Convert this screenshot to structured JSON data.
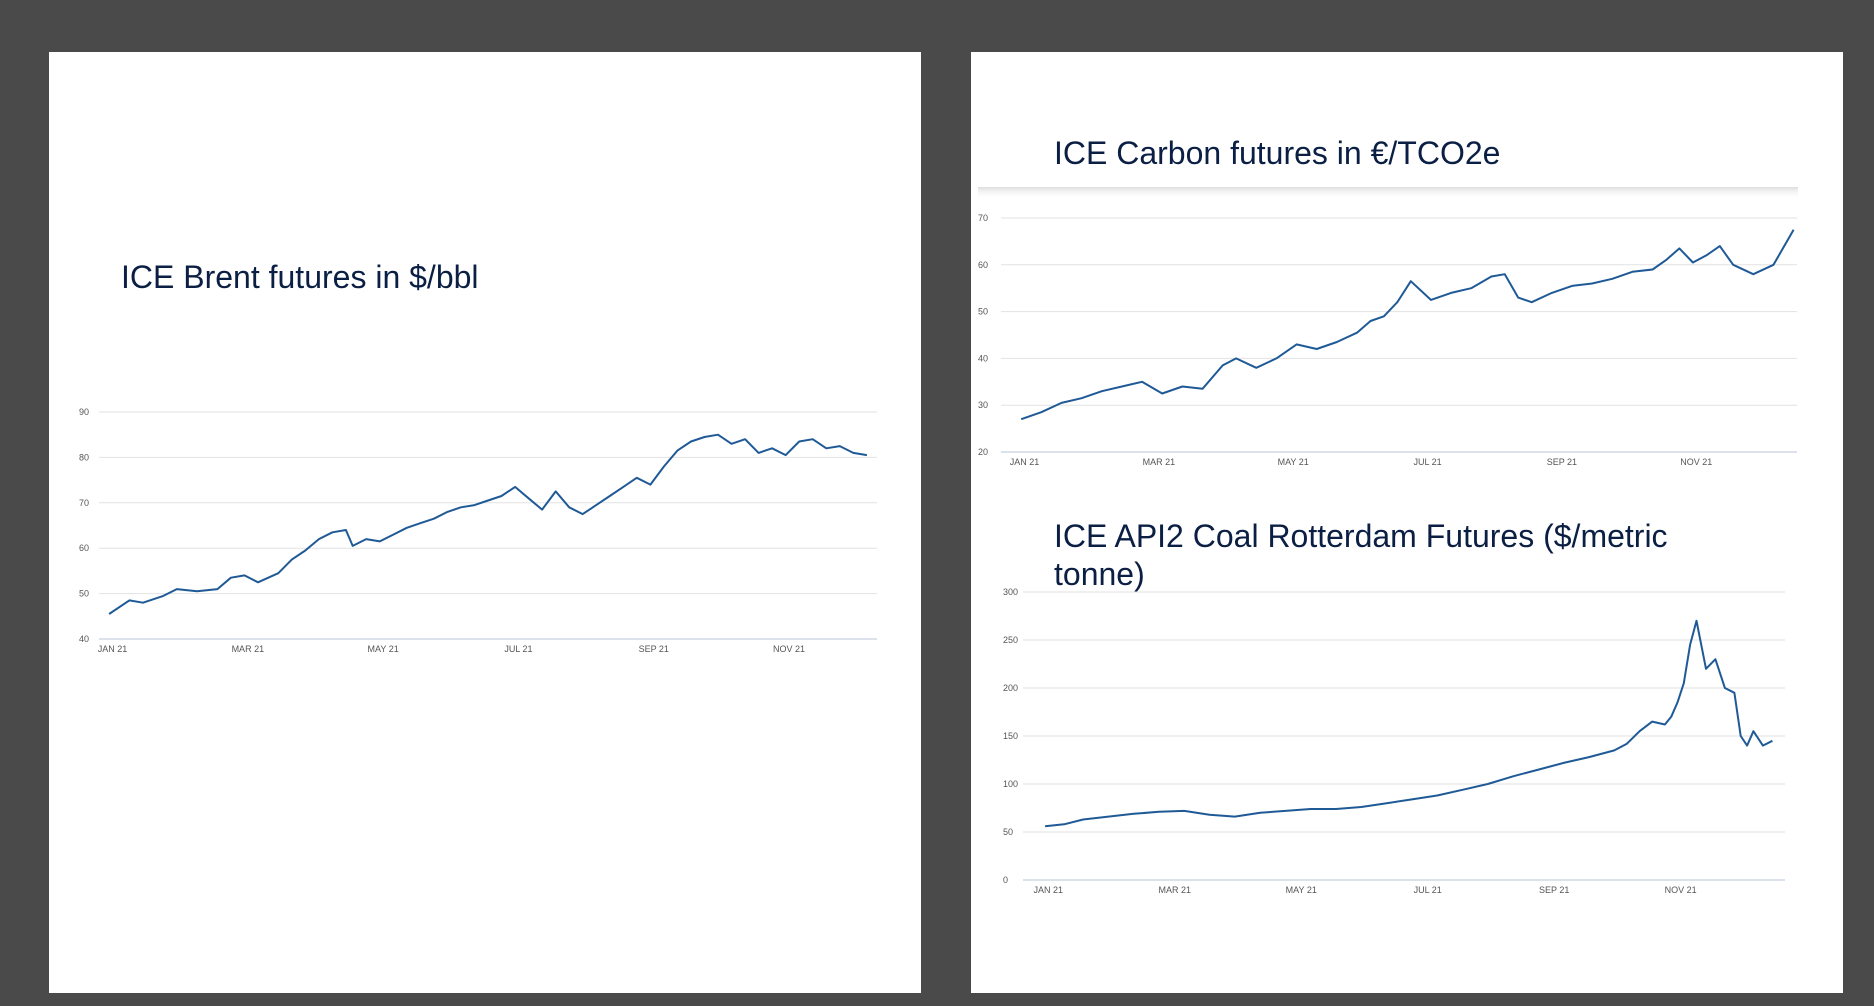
{
  "chart_data": [
    {
      "id": "brent",
      "type": "line",
      "title": "ICE Brent futures in $/bbl",
      "xlabel": "",
      "ylabel": "",
      "ylim": [
        40,
        90
      ],
      "yticks": [
        40,
        50,
        60,
        70,
        80,
        90
      ],
      "x_ticks": [
        {
          "label": "JAN 21",
          "month": 1
        },
        {
          "label": "MAR 21",
          "month": 3
        },
        {
          "label": "MAY 21",
          "month": 5
        },
        {
          "label": "JUL 21",
          "month": 7
        },
        {
          "label": "SEP 21",
          "month": 9
        },
        {
          "label": "NOV 21",
          "month": 11
        }
      ],
      "xrange": [
        -0.15,
        11.35
      ],
      "grid": true,
      "series": [
        {
          "color": "#1f5a96",
          "x": [
            0.0,
            0.3,
            0.5,
            0.8,
            1.0,
            1.3,
            1.6,
            1.8,
            2.0,
            2.2,
            2.5,
            2.7,
            2.9,
            3.1,
            3.3,
            3.5,
            3.6,
            3.8,
            4.0,
            4.2,
            4.4,
            4.6,
            4.8,
            5.0,
            5.2,
            5.4,
            5.6,
            5.8,
            6.0,
            6.2,
            6.4,
            6.6,
            6.8,
            7.0,
            7.2,
            7.4,
            7.6,
            7.8,
            8.0,
            8.2,
            8.4,
            8.6,
            8.8,
            9.0,
            9.2,
            9.4,
            9.6,
            9.8,
            10.0,
            10.2,
            10.4,
            10.6,
            10.8,
            11.0,
            11.2
          ],
          "y": [
            45.5,
            48.5,
            48.0,
            49.5,
            51.0,
            50.5,
            51.0,
            53.5,
            54.0,
            52.5,
            54.5,
            57.5,
            59.5,
            62.0,
            63.5,
            64.0,
            60.5,
            62.0,
            61.5,
            63.0,
            64.5,
            65.5,
            66.5,
            68.0,
            69.0,
            69.5,
            70.5,
            71.5,
            73.5,
            71.0,
            68.5,
            72.5,
            69.0,
            67.5,
            69.5,
            71.5,
            73.5,
            75.5,
            74.0,
            78.0,
            81.5,
            83.5,
            84.5,
            85.0,
            83.0,
            84.0,
            81.0,
            82.0,
            80.5,
            83.5,
            84.0,
            82.0,
            82.5,
            81.0,
            80.5
          ]
        }
      ]
    },
    {
      "id": "carbon",
      "type": "line",
      "title": "ICE Carbon futures in €/TCO2e",
      "xlabel": "",
      "ylabel": "",
      "ylim": [
        20,
        70
      ],
      "yticks": [
        20,
        30,
        40,
        50,
        60,
        70
      ],
      "x_ticks": [
        {
          "label": "JAN 21",
          "month": 1
        },
        {
          "label": "MAR 21",
          "month": 3
        },
        {
          "label": "MAY 21",
          "month": 5
        },
        {
          "label": "JUL 21",
          "month": 7
        },
        {
          "label": "SEP 21",
          "month": 9
        },
        {
          "label": "NOV 21",
          "month": 11
        }
      ],
      "xrange": [
        -0.3,
        11.55
      ],
      "grid": true,
      "series": [
        {
          "color": "#1f5a96",
          "x": [
            0.0,
            0.3,
            0.6,
            0.9,
            1.2,
            1.5,
            1.8,
            2.1,
            2.4,
            2.7,
            3.0,
            3.2,
            3.5,
            3.8,
            4.1,
            4.4,
            4.7,
            5.0,
            5.2,
            5.4,
            5.6,
            5.8,
            6.1,
            6.4,
            6.7,
            7.0,
            7.2,
            7.4,
            7.6,
            7.9,
            8.2,
            8.5,
            8.8,
            9.1,
            9.4,
            9.6,
            9.8,
            10.0,
            10.2,
            10.4,
            10.6,
            10.9,
            11.2,
            11.5
          ],
          "y": [
            27.0,
            28.5,
            30.5,
            31.5,
            33.0,
            34.0,
            35.0,
            32.5,
            34.0,
            33.5,
            38.5,
            40.0,
            38.0,
            40.0,
            43.0,
            42.0,
            43.5,
            45.5,
            48.0,
            49.0,
            52.0,
            56.5,
            52.5,
            54.0,
            55.0,
            57.5,
            58.0,
            53.0,
            52.0,
            54.0,
            55.5,
            56.0,
            57.0,
            58.5,
            59.0,
            61.0,
            63.5,
            60.5,
            62.0,
            64.0,
            60.0,
            58.0,
            60.0,
            67.5
          ]
        }
      ]
    },
    {
      "id": "coal",
      "type": "line",
      "title": "ICE API2 Coal Rotterdam Futures ($/metric tonne)",
      "xlabel": "",
      "ylabel": "",
      "ylim": [
        0,
        300
      ],
      "yticks": [
        0,
        50,
        100,
        150,
        200,
        250,
        300
      ],
      "x_ticks": [
        {
          "label": "JAN 21",
          "month": 1
        },
        {
          "label": "MAR 21",
          "month": 3
        },
        {
          "label": "MAY 21",
          "month": 5
        },
        {
          "label": "JUL 21",
          "month": 7
        },
        {
          "label": "SEP 21",
          "month": 9
        },
        {
          "label": "NOV 21",
          "month": 11
        }
      ],
      "xrange": [
        -0.35,
        11.7
      ],
      "grid": true,
      "series": [
        {
          "color": "#1f5a96",
          "x": [
            0.0,
            0.3,
            0.6,
            1.0,
            1.4,
            1.8,
            2.2,
            2.6,
            3.0,
            3.4,
            3.8,
            4.2,
            4.6,
            5.0,
            5.4,
            5.8,
            6.2,
            6.6,
            7.0,
            7.4,
            7.8,
            8.2,
            8.6,
            9.0,
            9.2,
            9.4,
            9.6,
            9.8,
            9.9,
            10.0,
            10.1,
            10.2,
            10.3,
            10.45,
            10.6,
            10.75,
            10.9,
            11.0,
            11.1,
            11.2,
            11.35,
            11.5
          ],
          "y": [
            56,
            58,
            63,
            66,
            69,
            71,
            72,
            68,
            66,
            70,
            72,
            74,
            74,
            76,
            80,
            84,
            88,
            94,
            100,
            108,
            115,
            122,
            128,
            135,
            142,
            155,
            165,
            162,
            170,
            185,
            205,
            245,
            270,
            220,
            230,
            200,
            195,
            150,
            140,
            155,
            140,
            145
          ]
        }
      ]
    }
  ]
}
